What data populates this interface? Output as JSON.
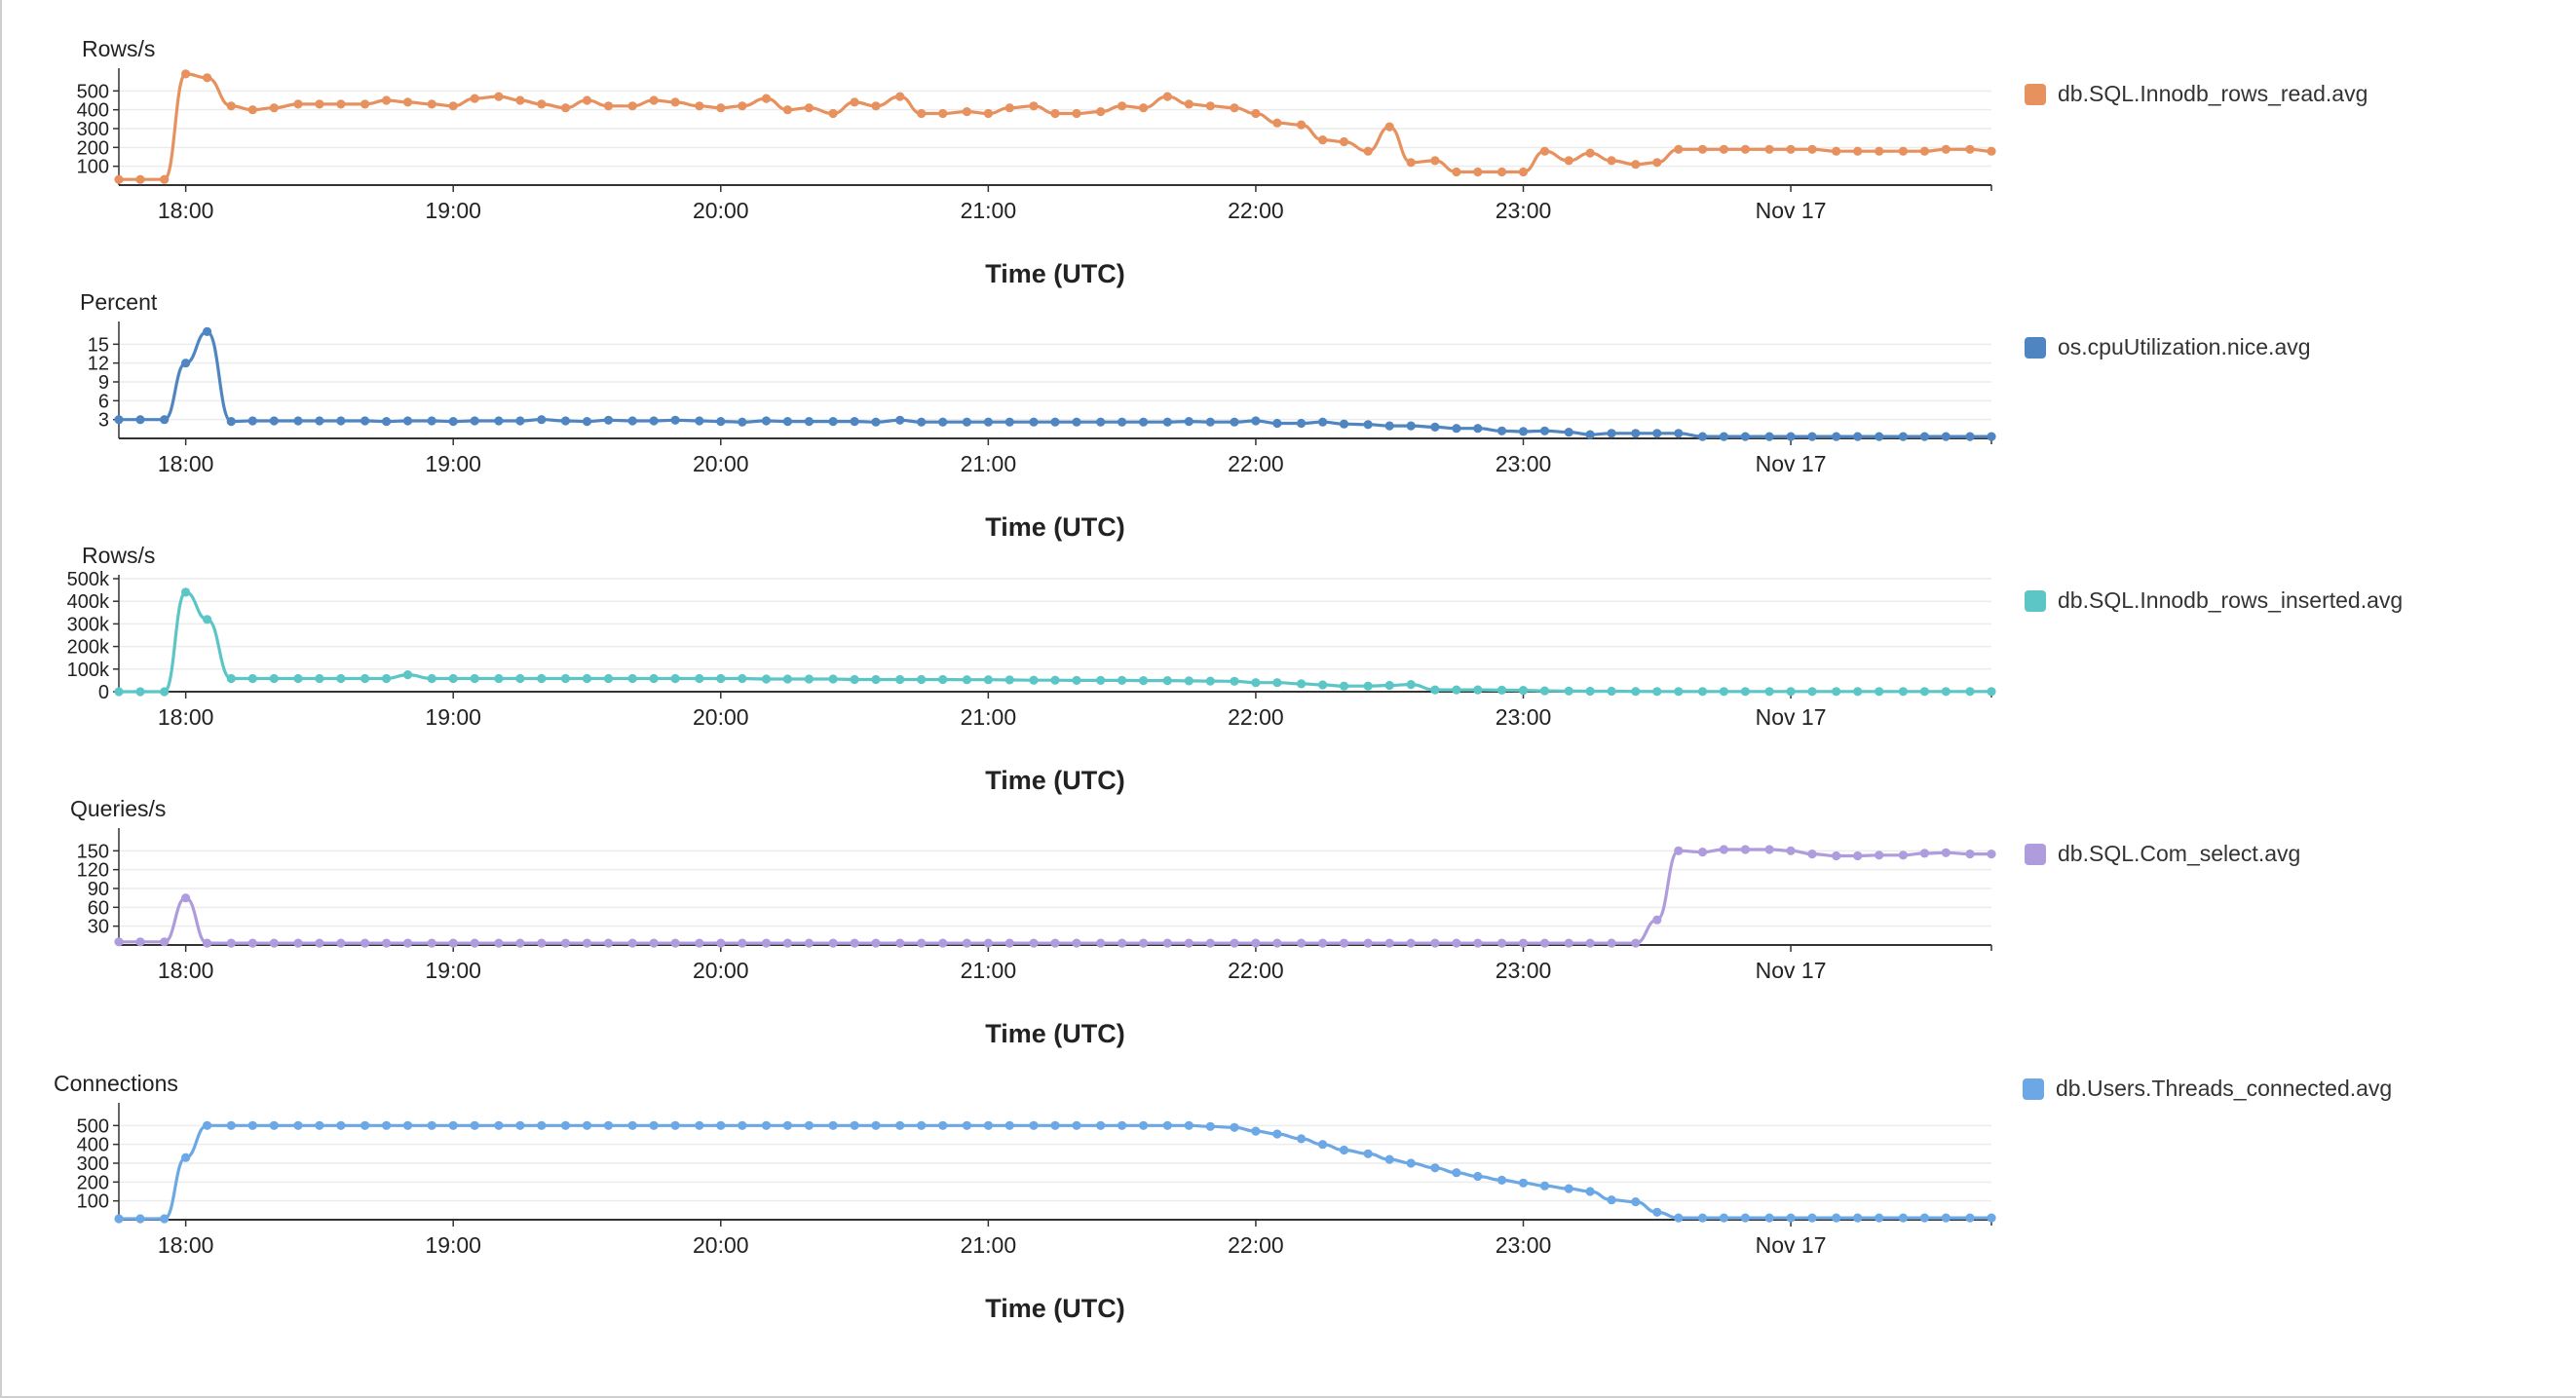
{
  "chart_data": [
    {
      "type": "line",
      "ylabel": "Rows/s",
      "xlabel": "Time (UTC)",
      "yticks": [
        100,
        200,
        300,
        400,
        500
      ],
      "ytick_labels": [
        "100",
        "200",
        "300",
        "400",
        "500"
      ],
      "ylim": [
        0,
        600
      ],
      "xlim": [
        17.75,
        24.75
      ],
      "xticks": [
        18,
        19,
        20,
        21,
        22,
        23,
        24
      ],
      "xtick_labels": [
        "18:00",
        "19:00",
        "20:00",
        "21:00",
        "22:00",
        "23:00",
        "Nov 17"
      ],
      "grid": true,
      "legend_position": "right",
      "series": [
        {
          "name": "db.SQL.Innodb_rows_read.avg",
          "color": "#e6915e",
          "x": [
            17.75,
            17.83,
            17.92,
            18.0,
            18.08,
            18.17,
            18.25,
            18.33,
            18.42,
            18.5,
            18.58,
            18.67,
            18.75,
            18.83,
            18.92,
            19.0,
            19.08,
            19.17,
            19.25,
            19.33,
            19.42,
            19.5,
            19.58,
            19.67,
            19.75,
            19.83,
            19.92,
            20.0,
            20.08,
            20.17,
            20.25,
            20.33,
            20.42,
            20.5,
            20.58,
            20.67,
            20.75,
            20.83,
            20.92,
            21.0,
            21.08,
            21.17,
            21.25,
            21.33,
            21.42,
            21.5,
            21.58,
            21.67,
            21.75,
            21.83,
            21.92,
            22.0,
            22.08,
            22.17,
            22.25,
            22.33,
            22.42,
            22.5,
            22.58,
            22.67,
            22.75,
            22.83,
            22.92,
            23.0,
            23.08,
            23.17,
            23.25,
            23.33,
            23.42,
            23.5,
            23.58,
            23.67,
            23.75,
            23.83,
            23.92,
            24.0,
            24.08,
            24.17,
            24.25,
            24.33,
            24.42,
            24.5,
            24.58,
            24.67,
            24.75
          ],
          "values": [
            30,
            30,
            30,
            590,
            570,
            420,
            400,
            410,
            430,
            430,
            430,
            430,
            450,
            440,
            430,
            420,
            460,
            470,
            450,
            430,
            410,
            450,
            420,
            420,
            450,
            440,
            420,
            410,
            420,
            460,
            400,
            410,
            380,
            440,
            420,
            470,
            380,
            380,
            390,
            380,
            410,
            420,
            380,
            380,
            390,
            420,
            410,
            470,
            430,
            420,
            410,
            380,
            330,
            320,
            240,
            230,
            180,
            310,
            120,
            130,
            70,
            70,
            70,
            70,
            180,
            130,
            170,
            130,
            110,
            120,
            190,
            190,
            190,
            190,
            190,
            190,
            190,
            180,
            180,
            180,
            180,
            180,
            190,
            190,
            180
          ]
        }
      ]
    },
    {
      "type": "line",
      "ylabel": "Percent",
      "xlabel": "Time (UTC)",
      "yticks": [
        3,
        6,
        9,
        12,
        15
      ],
      "ytick_labels": [
        "3",
        "6",
        "9",
        "12",
        "15"
      ],
      "ylim": [
        0,
        18
      ],
      "xlim": [
        17.75,
        24.75
      ],
      "xticks": [
        18,
        19,
        20,
        21,
        22,
        23,
        24
      ],
      "xtick_labels": [
        "18:00",
        "19:00",
        "20:00",
        "21:00",
        "22:00",
        "23:00",
        "Nov 17"
      ],
      "grid": true,
      "legend_position": "right",
      "series": [
        {
          "name": "os.cpuUtilization.nice.avg",
          "color": "#4f86c1",
          "x": [
            17.75,
            17.83,
            17.92,
            18.0,
            18.08,
            18.17,
            18.25,
            18.33,
            18.42,
            18.5,
            18.58,
            18.67,
            18.75,
            18.83,
            18.92,
            19.0,
            19.08,
            19.17,
            19.25,
            19.33,
            19.42,
            19.5,
            19.58,
            19.67,
            19.75,
            19.83,
            19.92,
            20.0,
            20.08,
            20.17,
            20.25,
            20.33,
            20.42,
            20.5,
            20.58,
            20.67,
            20.75,
            20.83,
            20.92,
            21.0,
            21.08,
            21.17,
            21.25,
            21.33,
            21.42,
            21.5,
            21.58,
            21.67,
            21.75,
            21.83,
            21.92,
            22.0,
            22.08,
            22.17,
            22.25,
            22.33,
            22.42,
            22.5,
            22.58,
            22.67,
            22.75,
            22.83,
            22.92,
            23.0,
            23.08,
            23.17,
            23.25,
            23.33,
            23.42,
            23.5,
            23.58,
            23.67,
            23.75,
            23.83,
            23.92,
            24.0,
            24.08,
            24.17,
            24.25,
            24.33,
            24.42,
            24.5,
            24.58,
            24.67,
            24.75
          ],
          "values": [
            3,
            3,
            3,
            12,
            17,
            2.7,
            2.8,
            2.8,
            2.8,
            2.8,
            2.8,
            2.8,
            2.7,
            2.8,
            2.8,
            2.7,
            2.8,
            2.8,
            2.8,
            3,
            2.8,
            2.7,
            2.9,
            2.8,
            2.8,
            2.9,
            2.8,
            2.7,
            2.6,
            2.8,
            2.7,
            2.7,
            2.7,
            2.7,
            2.6,
            2.9,
            2.6,
            2.6,
            2.6,
            2.6,
            2.6,
            2.6,
            2.6,
            2.6,
            2.6,
            2.6,
            2.6,
            2.6,
            2.7,
            2.6,
            2.6,
            2.8,
            2.4,
            2.4,
            2.6,
            2.3,
            2.2,
            2.0,
            2.0,
            1.8,
            1.6,
            1.6,
            1.2,
            1.1,
            1.2,
            1.0,
            0.6,
            0.8,
            0.8,
            0.8,
            0.8,
            0.3,
            0.3,
            0.3,
            0.3,
            0.3,
            0.3,
            0.3,
            0.3,
            0.3,
            0.3,
            0.3,
            0.3,
            0.3,
            0.3
          ]
        }
      ]
    },
    {
      "type": "line",
      "ylabel": "Rows/s",
      "xlabel": "Time (UTC)",
      "yticks": [
        0,
        100000,
        200000,
        300000,
        400000,
        500000
      ],
      "ytick_labels": [
        "0",
        "100k",
        "200k",
        "300k",
        "400k",
        "500k"
      ],
      "ylim": [
        0,
        500000
      ],
      "xlim": [
        17.75,
        24.75
      ],
      "xticks": [
        18,
        19,
        20,
        21,
        22,
        23,
        24
      ],
      "xtick_labels": [
        "18:00",
        "19:00",
        "20:00",
        "21:00",
        "22:00",
        "23:00",
        "Nov 17"
      ],
      "grid": true,
      "legend_position": "right",
      "series": [
        {
          "name": "db.SQL.Innodb_rows_inserted.avg",
          "color": "#5cc6c6",
          "x": [
            17.75,
            17.83,
            17.92,
            18.0,
            18.08,
            18.17,
            18.25,
            18.33,
            18.42,
            18.5,
            18.58,
            18.67,
            18.75,
            18.83,
            18.92,
            19.0,
            19.08,
            19.17,
            19.25,
            19.33,
            19.42,
            19.5,
            19.58,
            19.67,
            19.75,
            19.83,
            19.92,
            20.0,
            20.08,
            20.17,
            20.25,
            20.33,
            20.42,
            20.5,
            20.58,
            20.67,
            20.75,
            20.83,
            20.92,
            21.0,
            21.08,
            21.17,
            21.25,
            21.33,
            21.42,
            21.5,
            21.58,
            21.67,
            21.75,
            21.83,
            21.92,
            22.0,
            22.08,
            22.17,
            22.25,
            22.33,
            22.42,
            22.5,
            22.58,
            22.67,
            22.75,
            22.83,
            22.92,
            23.0,
            23.08,
            23.17,
            23.25,
            23.33,
            23.42,
            23.5,
            23.58,
            23.67,
            23.75,
            23.83,
            23.92,
            24.0,
            24.08,
            24.17,
            24.25,
            24.33,
            24.42,
            24.5,
            24.58,
            24.67,
            24.75
          ],
          "values": [
            0,
            0,
            0,
            440000,
            320000,
            58000,
            58000,
            58000,
            58000,
            58000,
            58000,
            58000,
            58000,
            75000,
            58000,
            58000,
            58000,
            58000,
            58000,
            58000,
            58000,
            58000,
            58000,
            58000,
            58000,
            58000,
            58000,
            58000,
            58000,
            56000,
            56000,
            56000,
            56000,
            54000,
            54000,
            54000,
            54000,
            54000,
            53000,
            53000,
            52000,
            51000,
            51000,
            50000,
            50000,
            50000,
            49000,
            49000,
            48000,
            47000,
            46000,
            40000,
            40000,
            35000,
            30000,
            25000,
            25000,
            28000,
            32000,
            8000,
            8000,
            8000,
            7000,
            6000,
            4000,
            3000,
            2000,
            2000,
            1500,
            1000,
            1000,
            1000,
            1000,
            1000,
            1000,
            1000,
            1000,
            1000,
            1000,
            1000,
            1000,
            1000,
            1000,
            1000,
            1000
          ]
        }
      ]
    },
    {
      "type": "line",
      "ylabel": "Queries/s",
      "xlabel": "Time (UTC)",
      "yticks": [
        30,
        60,
        90,
        120,
        150
      ],
      "ytick_labels": [
        "30",
        "60",
        "90",
        "120",
        "150"
      ],
      "ylim": [
        0,
        180
      ],
      "xlim": [
        17.75,
        24.75
      ],
      "xticks": [
        18,
        19,
        20,
        21,
        22,
        23,
        24
      ],
      "xtick_labels": [
        "18:00",
        "19:00",
        "20:00",
        "21:00",
        "22:00",
        "23:00",
        "Nov 17"
      ],
      "grid": true,
      "legend_position": "right",
      "series": [
        {
          "name": "db.SQL.Com_select.avg",
          "color": "#ae9cdc",
          "x": [
            17.75,
            17.83,
            17.92,
            18.0,
            18.08,
            18.17,
            18.25,
            18.33,
            18.42,
            18.5,
            18.58,
            18.67,
            18.75,
            18.83,
            18.92,
            19.0,
            19.08,
            19.17,
            19.25,
            19.33,
            19.42,
            19.5,
            19.58,
            19.67,
            19.75,
            19.83,
            19.92,
            20.0,
            20.08,
            20.17,
            20.25,
            20.33,
            20.42,
            20.5,
            20.58,
            20.67,
            20.75,
            20.83,
            20.92,
            21.0,
            21.08,
            21.17,
            21.25,
            21.33,
            21.42,
            21.5,
            21.58,
            21.67,
            21.75,
            21.83,
            21.92,
            22.0,
            22.08,
            22.17,
            22.25,
            22.33,
            22.42,
            22.5,
            22.58,
            22.67,
            22.75,
            22.83,
            22.92,
            23.0,
            23.08,
            23.17,
            23.25,
            23.33,
            23.42,
            23.5,
            23.58,
            23.67,
            23.75,
            23.83,
            23.92,
            24.0,
            24.08,
            24.17,
            24.25,
            24.33,
            24.42,
            24.5,
            24.58,
            24.67,
            24.75
          ],
          "values": [
            5,
            5,
            5,
            75,
            3,
            3,
            3,
            3,
            3,
            3,
            3,
            3,
            3,
            3,
            3,
            3,
            3,
            3,
            3,
            3,
            3,
            3,
            3,
            3,
            3,
            3,
            3,
            3,
            3,
            3,
            3,
            3,
            3,
            3,
            3,
            3,
            3,
            3,
            3,
            3,
            3,
            3,
            3,
            3,
            3,
            3,
            3,
            3,
            3,
            3,
            3,
            3,
            3,
            3,
            3,
            3,
            3,
            3,
            3,
            3,
            3,
            3,
            3,
            3,
            3,
            3,
            3,
            3,
            3,
            40,
            150,
            148,
            152,
            152,
            152,
            150,
            145,
            142,
            142,
            143,
            143,
            146,
            147,
            145,
            145
          ]
        }
      ]
    },
    {
      "type": "line",
      "ylabel": "Connections",
      "xlabel": "Time (UTC)",
      "yticks": [
        100,
        200,
        300,
        400,
        500
      ],
      "ytick_labels": [
        "100",
        "200",
        "300",
        "400",
        "500"
      ],
      "ylim": [
        0,
        600
      ],
      "xlim": [
        17.75,
        24.75
      ],
      "xticks": [
        18,
        19,
        20,
        21,
        22,
        23,
        24
      ],
      "xtick_labels": [
        "18:00",
        "19:00",
        "20:00",
        "21:00",
        "22:00",
        "23:00",
        "Nov 17"
      ],
      "grid": true,
      "legend_position": "right",
      "series": [
        {
          "name": "db.Users.Threads_connected.avg",
          "color": "#6ba8e5",
          "x": [
            17.75,
            17.83,
            17.92,
            18.0,
            18.08,
            18.17,
            18.25,
            18.33,
            18.42,
            18.5,
            18.58,
            18.67,
            18.75,
            18.83,
            18.92,
            19.0,
            19.08,
            19.17,
            19.25,
            19.33,
            19.42,
            19.5,
            19.58,
            19.67,
            19.75,
            19.83,
            19.92,
            20.0,
            20.08,
            20.17,
            20.25,
            20.33,
            20.42,
            20.5,
            20.58,
            20.67,
            20.75,
            20.83,
            20.92,
            21.0,
            21.08,
            21.17,
            21.25,
            21.33,
            21.42,
            21.5,
            21.58,
            21.67,
            21.75,
            21.83,
            21.92,
            22.0,
            22.08,
            22.17,
            22.25,
            22.33,
            22.42,
            22.5,
            22.58,
            22.67,
            22.75,
            22.83,
            22.92,
            23.0,
            23.08,
            23.17,
            23.25,
            23.33,
            23.42,
            23.5,
            23.58,
            23.67,
            23.75,
            23.83,
            23.92,
            24.0,
            24.08,
            24.17,
            24.25,
            24.33,
            24.42,
            24.5,
            24.58,
            24.67,
            24.75
          ],
          "values": [
            5,
            5,
            5,
            330,
            500,
            500,
            500,
            500,
            500,
            500,
            500,
            500,
            500,
            500,
            500,
            500,
            500,
            500,
            500,
            500,
            500,
            500,
            500,
            500,
            500,
            500,
            500,
            500,
            500,
            500,
            500,
            500,
            500,
            500,
            500,
            500,
            500,
            500,
            500,
            500,
            500,
            500,
            500,
            500,
            500,
            500,
            500,
            500,
            500,
            495,
            490,
            470,
            455,
            430,
            400,
            370,
            350,
            320,
            300,
            275,
            250,
            230,
            210,
            195,
            180,
            165,
            150,
            105,
            95,
            40,
            10,
            10,
            10,
            10,
            10,
            10,
            10,
            10,
            10,
            10,
            10,
            10,
            10,
            10,
            10
          ]
        }
      ]
    }
  ]
}
